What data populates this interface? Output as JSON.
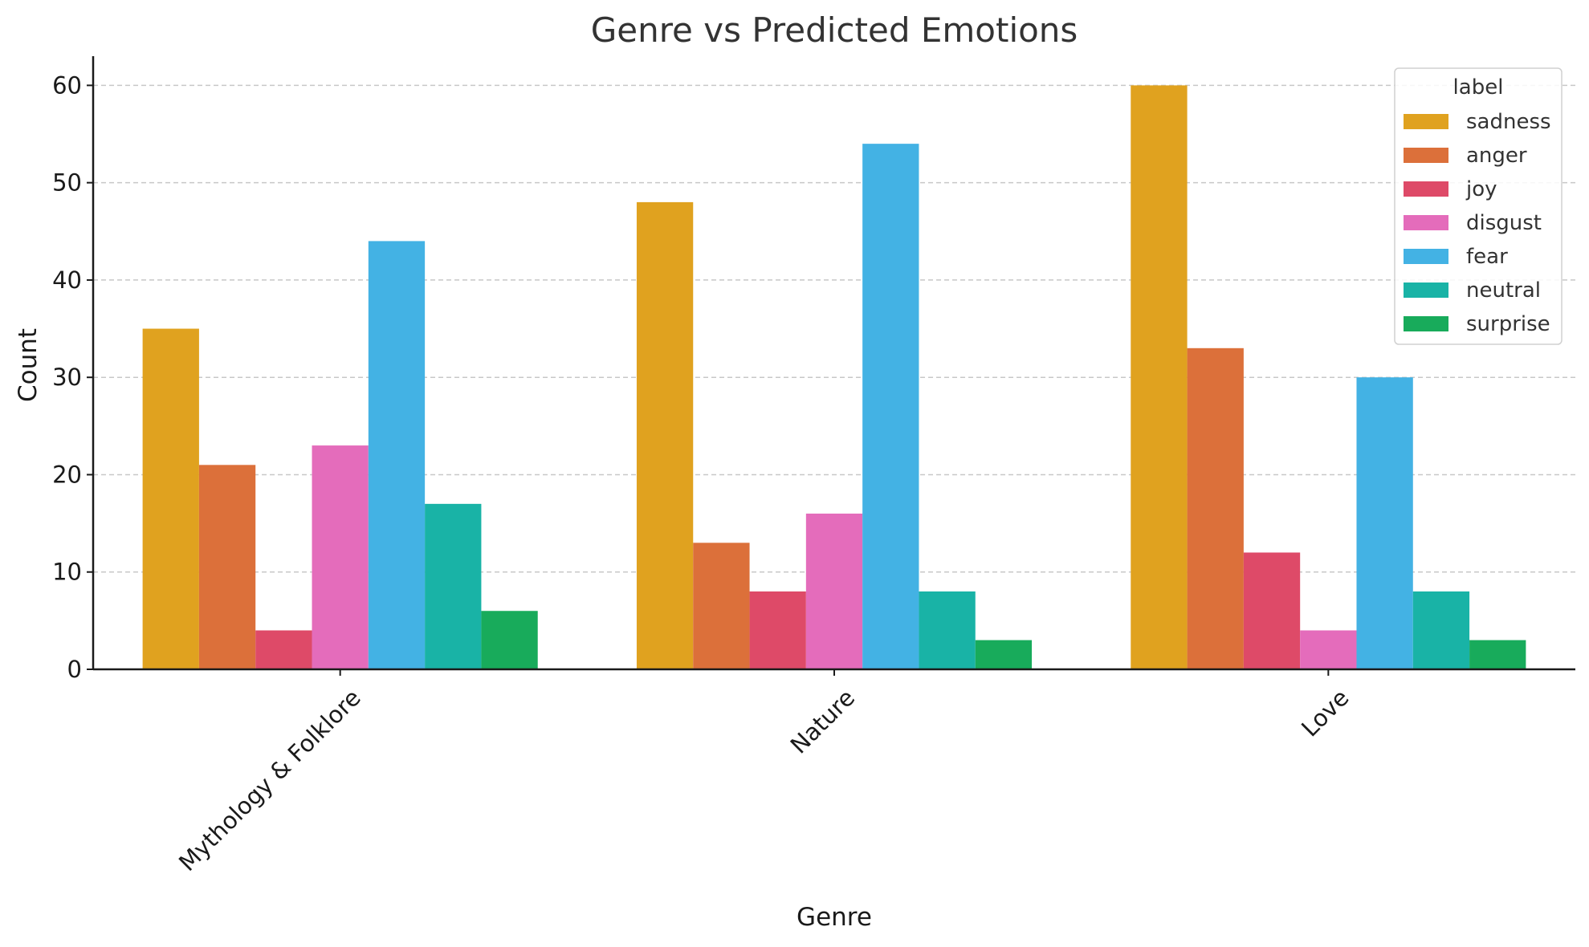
{
  "chart_data": {
    "type": "bar",
    "title": "Genre vs Predicted Emotions",
    "xlabel": "Genre",
    "ylabel": "Count",
    "ylim": [
      0,
      63
    ],
    "yticks": [
      0,
      10,
      20,
      30,
      40,
      50,
      60
    ],
    "grid": true,
    "legend_position": "top-right",
    "legend_title": "label",
    "categories": [
      "Mythology & Folklore",
      "Nature",
      "Love"
    ],
    "series": [
      {
        "name": "sadness",
        "color": "#E0A21F",
        "values": [
          35,
          48,
          60
        ]
      },
      {
        "name": "anger",
        "color": "#DC703A",
        "values": [
          21,
          13,
          33
        ]
      },
      {
        "name": "joy",
        "color": "#DE4A68",
        "values": [
          4,
          8,
          12
        ]
      },
      {
        "name": "disgust",
        "color": "#E46CBB",
        "values": [
          23,
          16,
          4
        ]
      },
      {
        "name": "fear",
        "color": "#43B2E4",
        "values": [
          44,
          54,
          30
        ]
      },
      {
        "name": "neutral",
        "color": "#19B3A6",
        "values": [
          17,
          8,
          8
        ]
      },
      {
        "name": "surprise",
        "color": "#18AB5B",
        "values": [
          6,
          3,
          3
        ]
      }
    ]
  }
}
